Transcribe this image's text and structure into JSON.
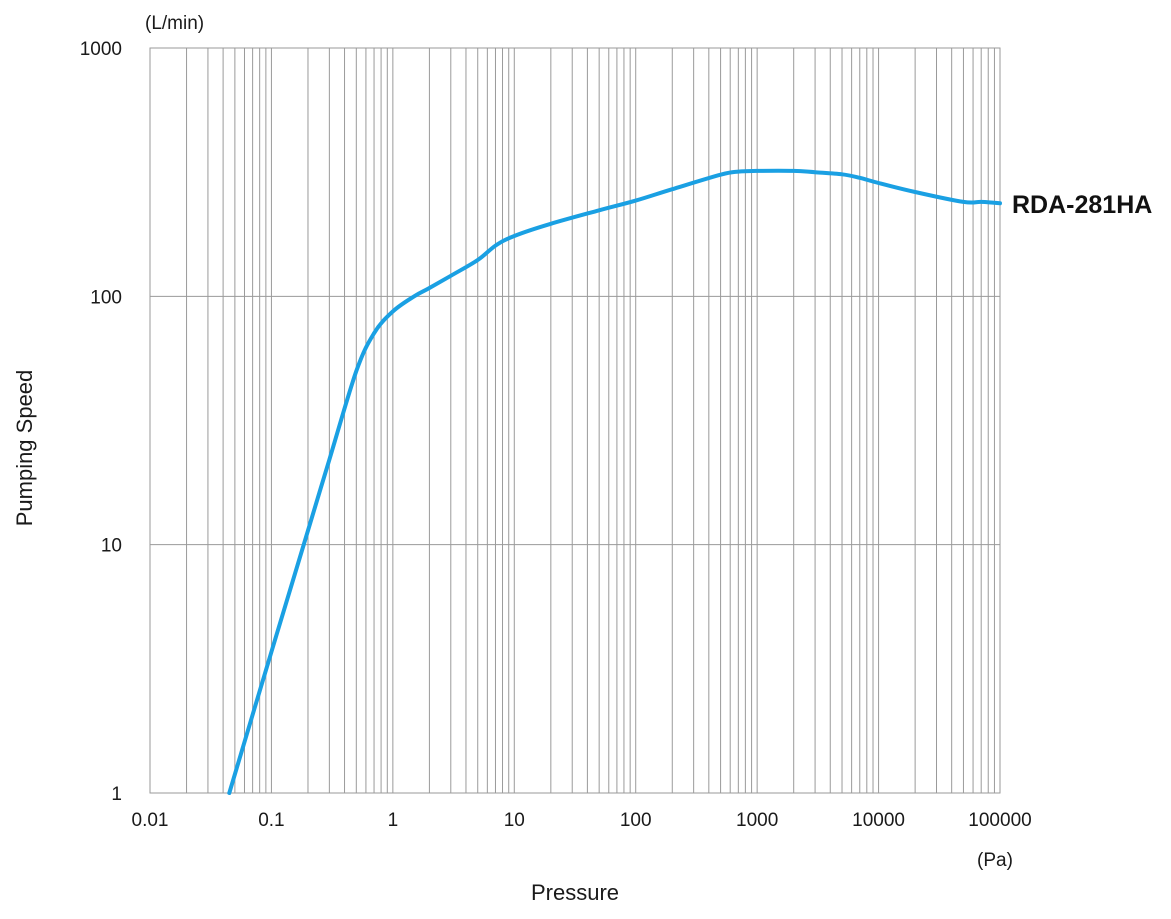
{
  "chart_data": {
    "type": "line",
    "xlabel": "Pressure",
    "ylabel": "Pumping Speed",
    "x_unit": "(Pa)",
    "y_unit": "(L/min)",
    "x_scale": "log",
    "y_scale": "log",
    "xlim": [
      0.01,
      100000
    ],
    "ylim": [
      1,
      1000
    ],
    "x_ticks": [
      0.01,
      0.1,
      1,
      10,
      100,
      1000,
      10000,
      100000
    ],
    "x_tick_labels": [
      "0.01",
      "0.1",
      "1",
      "10",
      "100",
      "1000",
      "10000",
      "100000"
    ],
    "y_ticks": [
      1,
      10,
      100,
      1000
    ],
    "y_tick_labels": [
      "1",
      "10",
      "100",
      "1000"
    ],
    "grid": true,
    "line_color": "#1aa0e3",
    "series": [
      {
        "name": "RDA-281HA",
        "x": [
          0.045,
          0.1,
          0.2,
          0.3,
          0.5,
          0.7,
          1,
          1.5,
          2,
          3,
          5,
          7,
          10,
          20,
          50,
          100,
          200,
          500,
          700,
          1000,
          2000,
          3000,
          5000,
          7000,
          10000,
          20000,
          50000,
          70000,
          100000
        ],
        "values": [
          1,
          3.7,
          11.4,
          22,
          50,
          71,
          87,
          100,
          108,
          121,
          140,
          160,
          175,
          196,
          222,
          243,
          270,
          309,
          318,
          320,
          320,
          316,
          310,
          300,
          286,
          263,
          240,
          240,
          237
        ]
      }
    ]
  }
}
